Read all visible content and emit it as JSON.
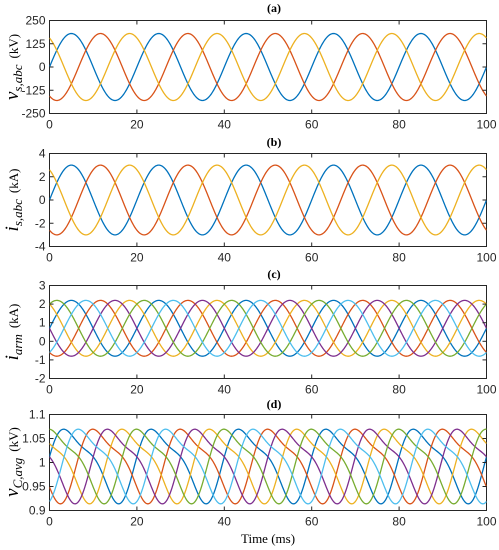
{
  "figure": {
    "xlabel": "Time (ms)"
  },
  "colors": [
    "#0072BD",
    "#D95319",
    "#EDB120",
    "#7E2F8E",
    "#77AC30",
    "#4DBEEE"
  ],
  "chart_data": [
    {
      "type": "line",
      "title": "(a)",
      "ylabel": {
        "main": "v",
        "sub": "s,abc",
        "unit": "(kV)"
      },
      "xlim": [
        0,
        100
      ],
      "ylim": [
        -250,
        250
      ],
      "xticks": [
        0,
        20,
        40,
        60,
        80,
        100
      ],
      "yticks": [
        -250,
        -125,
        0,
        125,
        250
      ],
      "xtick_labels": [
        "0",
        "20",
        "40",
        "60",
        "80",
        "100"
      ],
      "ytick_labels": [
        "-250",
        "-125",
        "0",
        "125",
        "250"
      ],
      "series_model": {
        "kind": "sinusoid",
        "frequency_hz": 50,
        "amplitude": 180,
        "offset": 0,
        "phases_deg": [
          0,
          -120,
          120
        ]
      },
      "series": [
        {
          "color": "#0072BD",
          "x": [
            0,
            5,
            10,
            15,
            20,
            25,
            30,
            35,
            40,
            45,
            50,
            55,
            60,
            65,
            70,
            75,
            80,
            85,
            90,
            95,
            100
          ],
          "y": [
            0,
            180,
            0,
            -180,
            0,
            180,
            0,
            -180,
            0,
            180,
            0,
            -180,
            0,
            180,
            0,
            -180,
            0,
            180,
            0,
            -180,
            0
          ]
        },
        {
          "color": "#D95319",
          "x": [
            0,
            5,
            10,
            15,
            20,
            25,
            30,
            35,
            40,
            45,
            50,
            55,
            60,
            65,
            70,
            75,
            80,
            85,
            90,
            95,
            100
          ],
          "y": [
            -156,
            -90,
            156,
            90,
            -156,
            -90,
            156,
            90,
            -156,
            -90,
            156,
            90,
            -156,
            -90,
            156,
            90,
            -156,
            -90,
            156,
            90,
            -156
          ]
        },
        {
          "color": "#EDB120",
          "x": [
            0,
            5,
            10,
            15,
            20,
            25,
            30,
            35,
            40,
            45,
            50,
            55,
            60,
            65,
            70,
            75,
            80,
            85,
            90,
            95,
            100
          ],
          "y": [
            156,
            -90,
            -156,
            90,
            156,
            -90,
            -156,
            90,
            156,
            -90,
            -156,
            90,
            156,
            -90,
            -156,
            90,
            156,
            -90,
            -156,
            90,
            156
          ]
        }
      ]
    },
    {
      "type": "line",
      "title": "(b)",
      "ylabel": {
        "main": "i",
        "sub": "s,abc",
        "unit": "(kA)"
      },
      "xlim": [
        0,
        100
      ],
      "ylim": [
        -4,
        4
      ],
      "xticks": [
        0,
        20,
        40,
        60,
        80,
        100
      ],
      "yticks": [
        -4,
        -2,
        0,
        2,
        4
      ],
      "xtick_labels": [
        "0",
        "20",
        "40",
        "60",
        "80",
        "100"
      ],
      "ytick_labels": [
        "-4",
        "-2",
        "0",
        "2",
        "4"
      ],
      "series_model": {
        "kind": "sinusoid",
        "frequency_hz": 50,
        "amplitude": 3,
        "offset": 0,
        "phases_deg": [
          0,
          -120,
          120
        ]
      },
      "series": [
        {
          "color": "#0072BD",
          "x": [
            0,
            5,
            10,
            15,
            20,
            25,
            30,
            35,
            40,
            45,
            50,
            55,
            60,
            65,
            70,
            75,
            80,
            85,
            90,
            95,
            100
          ],
          "y": [
            0,
            3,
            0,
            -3,
            0,
            3,
            0,
            -3,
            0,
            3,
            0,
            -3,
            0,
            3,
            0,
            -3,
            0,
            3,
            0,
            -3,
            0
          ]
        },
        {
          "color": "#D95319",
          "x": [
            0,
            5,
            10,
            15,
            20,
            25,
            30,
            35,
            40,
            45,
            50,
            55,
            60,
            65,
            70,
            75,
            80,
            85,
            90,
            95,
            100
          ],
          "y": [
            -2.6,
            -1.5,
            2.6,
            1.5,
            -2.6,
            -1.5,
            2.6,
            1.5,
            -2.6,
            -1.5,
            2.6,
            1.5,
            -2.6,
            -1.5,
            2.6,
            1.5,
            -2.6,
            -1.5,
            2.6,
            1.5,
            -2.6
          ]
        },
        {
          "color": "#EDB120",
          "x": [
            0,
            5,
            10,
            15,
            20,
            25,
            30,
            35,
            40,
            45,
            50,
            55,
            60,
            65,
            70,
            75,
            80,
            85,
            90,
            95,
            100
          ],
          "y": [
            2.6,
            -1.5,
            -2.6,
            1.5,
            2.6,
            -1.5,
            -2.6,
            1.5,
            2.6,
            -1.5,
            -2.6,
            1.5,
            2.6,
            -1.5,
            -2.6,
            1.5,
            2.6,
            -1.5,
            -2.6,
            1.5,
            2.6
          ]
        }
      ]
    },
    {
      "type": "line",
      "title": "(c)",
      "ylabel": {
        "main": "i",
        "sub": "arm",
        "unit": "(kA)"
      },
      "xlim": [
        0,
        100
      ],
      "ylim": [
        -2,
        3
      ],
      "xticks": [
        0,
        20,
        40,
        60,
        80,
        100
      ],
      "yticks": [
        -2,
        -1,
        0,
        1,
        2,
        3
      ],
      "xtick_labels": [
        "0",
        "20",
        "40",
        "60",
        "80",
        "100"
      ],
      "ytick_labels": [
        "-2",
        "-1",
        "0",
        "1",
        "2",
        "3"
      ],
      "series_model": {
        "kind": "sinusoid",
        "frequency_hz": 50,
        "amplitude": 1.5,
        "offset": 0.7,
        "phases_deg": [
          0,
          -120,
          120,
          180,
          60,
          -60
        ]
      },
      "series": [
        {
          "color": "#0072BD",
          "x": [
            0,
            5,
            10,
            15,
            20
          ],
          "y": [
            0.7,
            2.2,
            0.7,
            -0.8,
            0.7
          ]
        },
        {
          "color": "#D95319",
          "x": [
            0,
            5,
            10,
            15,
            20
          ],
          "y": [
            -0.6,
            -0.05,
            2.0,
            1.45,
            -0.6
          ]
        },
        {
          "color": "#EDB120",
          "x": [
            0,
            5,
            10,
            15,
            20
          ],
          "y": [
            2.0,
            -0.05,
            -0.6,
            1.45,
            2.0
          ]
        },
        {
          "color": "#7E2F8E",
          "x": [
            0,
            5,
            10,
            15,
            20
          ],
          "y": [
            0.7,
            -0.8,
            0.7,
            2.2,
            0.7
          ]
        },
        {
          "color": "#77AC30",
          "x": [
            0,
            5,
            10,
            15,
            20
          ],
          "y": [
            2.0,
            1.45,
            -0.6,
            -0.05,
            2.0
          ]
        },
        {
          "color": "#4DBEEE",
          "x": [
            0,
            5,
            10,
            15,
            20
          ],
          "y": [
            -0.6,
            1.45,
            2.0,
            -0.05,
            -0.6
          ]
        }
      ]
    },
    {
      "type": "line",
      "title": "(d)",
      "ylabel": {
        "main": "v",
        "sub": "C,avg",
        "unit": "(kV)"
      },
      "xlim": [
        0,
        100
      ],
      "ylim": [
        0.9,
        1.1
      ],
      "xticks": [
        0,
        20,
        40,
        60,
        80,
        100
      ],
      "yticks": [
        0.9,
        0.95,
        1.0,
        1.05,
        1.1
      ],
      "xtick_labels": [
        "0",
        "20",
        "40",
        "60",
        "80",
        "100"
      ],
      "ytick_labels": [
        "0.9",
        "0.95",
        "1",
        "1.05",
        "1.1"
      ],
      "series_model": {
        "kind": "skewed_periodic",
        "frequency_hz": 50,
        "amplitude": 0.078,
        "offset": 1.0,
        "phases_deg": [
          0,
          -120,
          120,
          180,
          60,
          -60
        ]
      },
      "series": [
        {
          "color": "#0072BD",
          "x": [
            0,
            5,
            10,
            15,
            20
          ],
          "y": [
            0.92,
            1.02,
            1.078,
            0.99,
            0.92
          ]
        },
        {
          "color": "#D95319",
          "x": [
            0,
            5,
            10,
            15,
            20
          ],
          "y": [
            1.078,
            0.96,
            0.922,
            1.03,
            1.078
          ]
        },
        {
          "color": "#EDB120",
          "x": [
            0,
            5,
            10,
            15,
            20
          ],
          "y": [
            1.0,
            1.075,
            0.98,
            0.922,
            1.0
          ]
        },
        {
          "color": "#7E2F8E",
          "x": [
            0,
            5,
            10,
            15,
            20
          ],
          "y": [
            1.078,
            0.98,
            0.922,
            1.01,
            1.078
          ]
        },
        {
          "color": "#77AC30",
          "x": [
            0,
            5,
            10,
            15,
            20
          ],
          "y": [
            0.922,
            1.05,
            1.075,
            0.96,
            0.922
          ]
        },
        {
          "color": "#4DBEEE",
          "x": [
            0,
            5,
            10,
            15,
            20
          ],
          "y": [
            0.96,
            0.925,
            1.04,
            1.078,
            0.96
          ]
        }
      ]
    }
  ]
}
